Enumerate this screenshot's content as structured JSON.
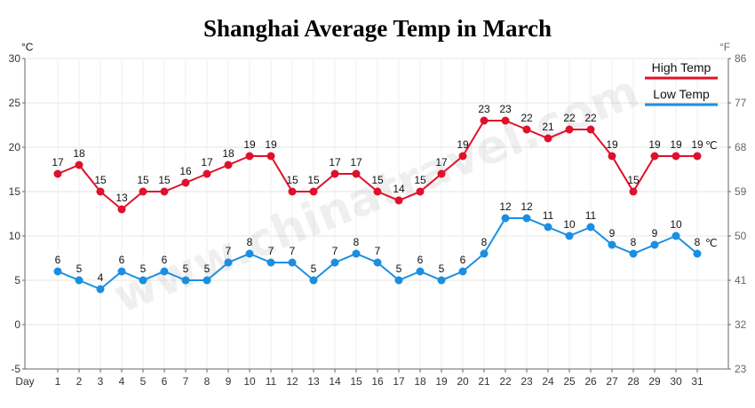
{
  "chart_data": {
    "type": "line",
    "title": "Shanghai Average Temp in March",
    "xlabel": "Day",
    "left_unit": "°C",
    "right_unit": "°F",
    "x": [
      1,
      2,
      3,
      4,
      5,
      6,
      7,
      8,
      9,
      10,
      11,
      12,
      13,
      14,
      15,
      16,
      17,
      18,
      19,
      20,
      21,
      22,
      23,
      24,
      25,
      26,
      27,
      28,
      29,
      30,
      31
    ],
    "ylim": [
      -5,
      30
    ],
    "yticks": [
      -5,
      0,
      5,
      10,
      15,
      20,
      25,
      30
    ],
    "right_ticks": [
      23,
      32,
      41,
      50,
      59,
      68,
      77,
      86
    ],
    "grid": true,
    "legend_position": "top-right",
    "end_label": "℃",
    "series": [
      {
        "name": "High Temp",
        "color": "#e0102a",
        "values": [
          17,
          18,
          15,
          13,
          15,
          15,
          16,
          17,
          18,
          19,
          19,
          15,
          15,
          17,
          17,
          15,
          14,
          15,
          17,
          19,
          23,
          23,
          22,
          21,
          22,
          22,
          19,
          15,
          19,
          19,
          19
        ]
      },
      {
        "name": "Low Temp",
        "color": "#1a8fe0",
        "values": [
          6,
          5,
          4,
          6,
          5,
          6,
          5,
          5,
          7,
          8,
          7,
          7,
          5,
          7,
          8,
          7,
          5,
          6,
          5,
          6,
          8,
          12,
          12,
          11,
          10,
          11,
          9,
          8,
          9,
          10,
          8
        ]
      }
    ],
    "watermark": "www.chinatravel.com"
  }
}
